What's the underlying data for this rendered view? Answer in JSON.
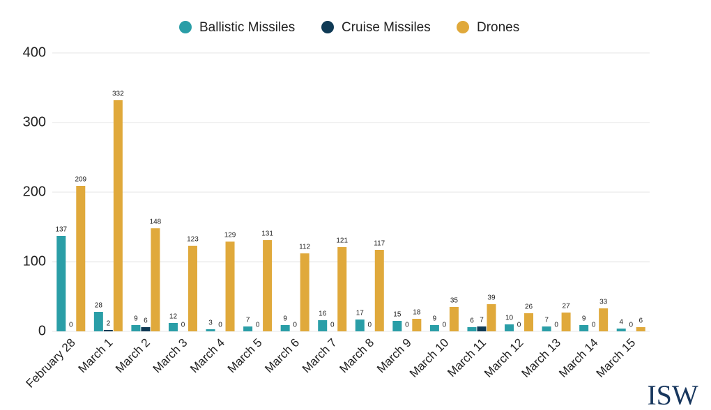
{
  "chart_data": {
    "type": "bar",
    "categories": [
      "February 28",
      "March 1",
      "March 2",
      "March 3",
      "March 4",
      "March 5",
      "March 6",
      "March 7",
      "March 8",
      "March 9",
      "March 10",
      "March 11",
      "March 12",
      "March 13",
      "March 14",
      "March 15"
    ],
    "series": [
      {
        "name": "Ballistic Missiles",
        "color": "#2a9ea7",
        "values": [
          137,
          28,
          9,
          12,
          3,
          7,
          9,
          16,
          17,
          15,
          9,
          6,
          10,
          7,
          9,
          4
        ]
      },
      {
        "name": "Cruise Missiles",
        "color": "#0f3a55",
        "values": [
          0,
          2,
          6,
          0,
          0,
          0,
          0,
          0,
          0,
          0,
          0,
          7,
          0,
          0,
          0,
          0
        ]
      },
      {
        "name": "Drones",
        "color": "#e0a93b",
        "values": [
          209,
          332,
          148,
          123,
          129,
          131,
          112,
          121,
          117,
          18,
          35,
          39,
          26,
          27,
          33,
          6
        ]
      }
    ],
    "ylim": [
      0,
      400
    ],
    "yticks": [
      0,
      100,
      200,
      300,
      400
    ],
    "grid": true,
    "legend": "top"
  },
  "logo": "ISW"
}
